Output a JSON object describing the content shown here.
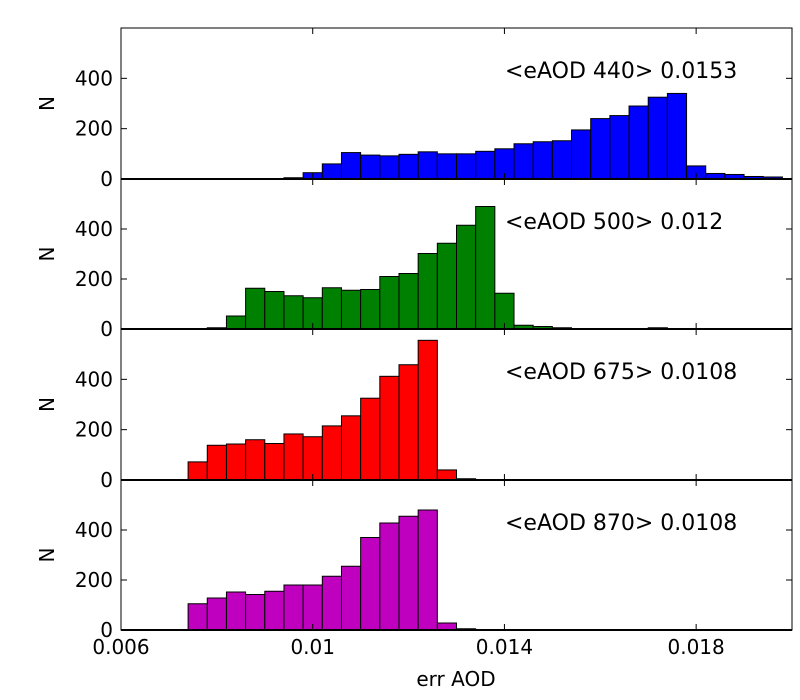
{
  "chart_data": [
    {
      "type": "bar",
      "annotation": "<eAOD 440> 0.0153",
      "ylabel": "N",
      "xlim": [
        0.006,
        0.02
      ],
      "ylim": [
        0,
        600
      ],
      "yticks": [
        0,
        200,
        400
      ],
      "color": "#0000ff",
      "bin_width": 0.0004,
      "bin_edges_start": 0.0094,
      "values": [
        5,
        25,
        60,
        105,
        95,
        92,
        98,
        108,
        100,
        100,
        110,
        120,
        140,
        148,
        152,
        195,
        240,
        252,
        290,
        325,
        340,
        52,
        22,
        18,
        10,
        8
      ]
    },
    {
      "type": "bar",
      "annotation": "<eAOD 500> 0.012",
      "ylabel": "N",
      "xlim": [
        0.006,
        0.02
      ],
      "ylim": [
        0,
        600
      ],
      "yticks": [
        0,
        200,
        400
      ],
      "color": "#008000",
      "bin_width": 0.0004,
      "bin_edges_start": 0.0078,
      "values": [
        5,
        52,
        163,
        150,
        133,
        125,
        165,
        155,
        158,
        210,
        222,
        302,
        343,
        415,
        490,
        143,
        15,
        10,
        5,
        0,
        0,
        0,
        0,
        5
      ]
    },
    {
      "type": "bar",
      "annotation": "<eAOD 675> 0.0108",
      "ylabel": "N",
      "xlim": [
        0.006,
        0.02
      ],
      "ylim": [
        0,
        600
      ],
      "yticks": [
        0,
        200,
        400
      ],
      "color": "#ff0000",
      "bin_width": 0.0004,
      "bin_edges_start": 0.0074,
      "values": [
        72,
        138,
        143,
        160,
        145,
        183,
        172,
        215,
        255,
        325,
        412,
        458,
        555,
        40,
        5
      ]
    },
    {
      "type": "bar",
      "annotation": "<eAOD 870> 0.0108",
      "ylabel": "N",
      "xlabel": "err AOD",
      "xlim": [
        0.006,
        0.02
      ],
      "ylim": [
        0,
        600
      ],
      "yticks": [
        0,
        200,
        400
      ],
      "xticks": [
        {
          "value": 0.006,
          "label": "0.006"
        },
        {
          "value": 0.01,
          "label": "0.01"
        },
        {
          "value": 0.014,
          "label": "0.014"
        },
        {
          "value": 0.018,
          "label": "0.018"
        }
      ],
      "color": "#bf00bf",
      "bin_width": 0.0004,
      "bin_edges_start": 0.0074,
      "values": [
        105,
        128,
        152,
        142,
        155,
        180,
        180,
        215,
        255,
        370,
        428,
        455,
        480,
        28,
        5
      ]
    }
  ]
}
